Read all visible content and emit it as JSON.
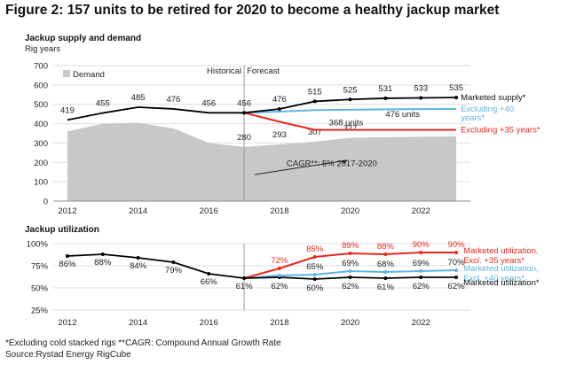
{
  "figure_title": "Figure 2: 157 units to be retired for 2020 to become a healthy jackup market",
  "footnote": "*Excluding cold stacked rigs **CAGR: Compound Annual Growth Rate",
  "source": "Source:Rystad Energy RigCube",
  "colors": {
    "black": "#000000",
    "blue": "#5fb4e3",
    "red": "#e8281c",
    "demand": "#c8c8c8",
    "grid": "#dedede"
  },
  "chart_data": [
    {
      "type": "line",
      "title": "Jackup supply and demand",
      "ylabel": "Rig years",
      "ylim": [
        0,
        700
      ],
      "yticks": [
        "0",
        "100",
        "200",
        "300",
        "400",
        "500",
        "600",
        "700"
      ],
      "xlim": [
        2011.6,
        2023.4
      ],
      "xticks": [
        "2012",
        "2014",
        "2016",
        "2018",
        "2020",
        "2022"
      ],
      "divider_x": 2017,
      "divider_labels": {
        "historical": "Historical",
        "forecast": "Forecast"
      },
      "legend": {
        "demand": "Demand"
      },
      "demand": {
        "name": "Demand",
        "x": [
          2012,
          2013,
          2014,
          2015,
          2016,
          2017,
          2018,
          2019,
          2020,
          2021,
          2022,
          2023
        ],
        "values": [
          360,
          400,
          405,
          375,
          300,
          280,
          293,
          307,
          327,
          330,
          333,
          335
        ],
        "labels": [
          {
            "x": 2017,
            "y": 280,
            "text": "280"
          },
          {
            "x": 2018,
            "y": 293,
            "text": "293"
          },
          {
            "x": 2019,
            "y": 307,
            "text": "307"
          },
          {
            "x": 2020,
            "y": 327,
            "text": "327"
          }
        ]
      },
      "series": [
        {
          "name": "Marketed supply*",
          "color": "#000000",
          "x": [
            2012,
            2013,
            2014,
            2015,
            2016,
            2017,
            2018,
            2019,
            2020,
            2021,
            2022,
            2023
          ],
          "values": [
            419,
            455,
            485,
            476,
            456,
            456,
            476,
            515,
            525,
            531,
            533,
            535
          ],
          "labels": [
            "419",
            "455",
            "485",
            "476",
            "456",
            "456",
            "476",
            "515",
            "525",
            "531",
            "533",
            "535"
          ]
        },
        {
          "name": "Excluding +40 years*",
          "label_lines": [
            "Excluding +40",
            "years*"
          ],
          "color": "#5fb4e3",
          "x": [
            2017,
            2018,
            2019,
            2020,
            2021,
            2022,
            2023
          ],
          "values": [
            456,
            462,
            470,
            472,
            474,
            475,
            476
          ]
        },
        {
          "name": "Excluding +35 years*",
          "label_lines": [
            "Excluding +35 years*"
          ],
          "color": "#e8281c",
          "x": [
            2017,
            2018,
            2019,
            2020,
            2021,
            2022,
            2023
          ],
          "values": [
            456,
            410,
            368,
            368,
            368,
            368,
            368
          ]
        }
      ],
      "annotations": [
        {
          "text": "476 units",
          "x": 2021.0,
          "y": 435
        },
        {
          "text": "368 units",
          "x": 2019.4,
          "y": 392
        },
        {
          "text": "CAGR**: 5% 2017-2020",
          "x": 2018.2,
          "y": 180
        }
      ]
    },
    {
      "type": "line",
      "title": "Jackup utilization",
      "ylim": [
        25,
        100
      ],
      "yticks": [
        "25%",
        "50%",
        "75%",
        "100%"
      ],
      "xlim": [
        2011.6,
        2023.4
      ],
      "xticks": [
        "2012",
        "2014",
        "2016",
        "2018",
        "2020",
        "2022"
      ],
      "divider_x": 2017,
      "series": [
        {
          "name": "Marketed utilization*",
          "label_lines": [
            "Marketed utilization*"
          ],
          "color": "#000000",
          "x": [
            2012,
            2013,
            2014,
            2015,
            2016,
            2017,
            2018,
            2019,
            2020,
            2021,
            2022,
            2023
          ],
          "values": [
            86,
            88,
            84,
            79,
            66,
            61,
            62,
            60,
            62,
            61,
            62,
            62
          ],
          "labels": [
            "86%",
            "88%",
            "84%",
            "79%",
            "66%",
            "61%",
            "62%",
            "60%",
            "62%",
            "61%",
            "62%",
            "62%"
          ]
        },
        {
          "name": "Marketed utilization, Excl. +40 years*",
          "label_lines": [
            "Marketed utilization,",
            "Excl. +40 years*"
          ],
          "color": "#5fb4e3",
          "x": [
            2017,
            2018,
            2019,
            2020,
            2021,
            2022,
            2023
          ],
          "values": [
            61,
            64,
            65,
            69,
            68,
            69,
            70
          ],
          "labels": [
            "",
            "",
            "65%",
            "69%",
            "68%",
            "69%",
            "70%"
          ]
        },
        {
          "name": "Marketed utilization, Excl. +35 years*",
          "label_lines": [
            "Marketed utilization,",
            "Excl. +35 years*"
          ],
          "color": "#e8281c",
          "x": [
            2017,
            2018,
            2019,
            2020,
            2021,
            2022,
            2023
          ],
          "values": [
            61,
            72,
            85,
            89,
            88,
            90,
            90
          ],
          "labels": [
            "",
            "72%",
            "85%",
            "89%",
            "88%",
            "90%",
            "90%"
          ]
        }
      ]
    }
  ]
}
